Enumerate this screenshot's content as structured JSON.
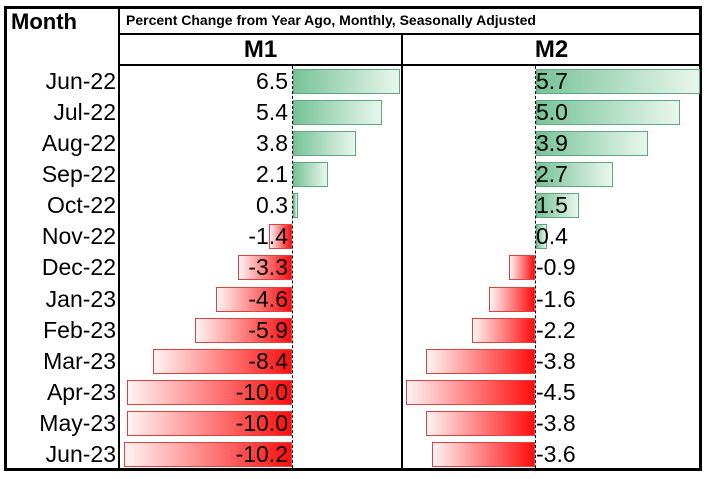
{
  "header": {
    "month_label": "Month",
    "title": "Percent Change from Year Ago, Monthly, Seasonally Adjusted"
  },
  "colors": {
    "positive_fill_solid": "#77c397",
    "positive_fill_pale": "#e9f6ee",
    "positive_border": "#5fa87e",
    "negative_fill_solid": "#ff0d0d",
    "negative_fill_pale": "#fdf3f3",
    "negative_border": "#dd4141",
    "grid": "#000000",
    "text": "#000000",
    "background": "#ffffff"
  },
  "chart_data": {
    "type": "bar",
    "orientation": "horizontal",
    "title": "Percent Change from Year Ago, Monthly, Seasonally Adjusted",
    "xlabel": "Percent change from year ago",
    "ylabel": "Month",
    "grid": false,
    "legend_position": "column-headers",
    "categories": [
      "Jun-22",
      "Jul-22",
      "Aug-22",
      "Sep-22",
      "Oct-22",
      "Nov-22",
      "Dec-22",
      "Jan-23",
      "Feb-23",
      "Mar-23",
      "Apr-23",
      "May-23",
      "Jun-23"
    ],
    "series": [
      {
        "name": "M1",
        "values": [
          6.5,
          5.4,
          3.8,
          2.1,
          0.3,
          -1.4,
          -3.3,
          -4.6,
          -5.9,
          -8.4,
          -10.0,
          -10.0,
          -10.2
        ],
        "axis_range": [
          -10.2,
          6.5
        ]
      },
      {
        "name": "M2",
        "values": [
          5.7,
          5.0,
          3.9,
          2.7,
          1.5,
          0.4,
          -0.9,
          -1.6,
          -2.2,
          -3.8,
          -4.5,
          -3.8,
          -3.6
        ],
        "axis_range": [
          -4.5,
          5.7
        ]
      }
    ],
    "value_decimals": 1,
    "positive_color_name": "green",
    "negative_color_name": "red"
  }
}
